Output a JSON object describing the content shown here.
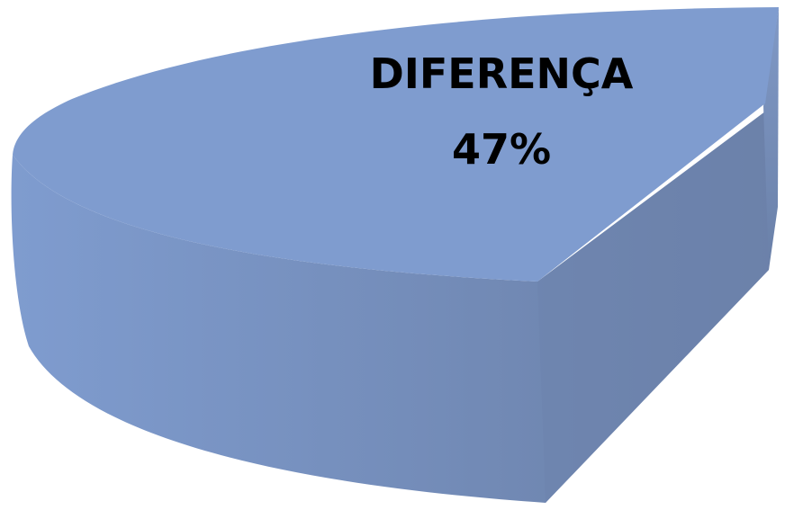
{
  "chart_data": {
    "type": "pie",
    "slices": [
      {
        "label": "DIFERENÇA",
        "value": 47,
        "value_label": "47%",
        "color": "#7f9ccf"
      }
    ]
  },
  "colors": {
    "top_face": "#7f9ccf",
    "side_face_light": "#7f9ccf",
    "side_face_dark": "#6a7fa6",
    "inner_face": "#6e84ad",
    "background": "#ffffff"
  }
}
